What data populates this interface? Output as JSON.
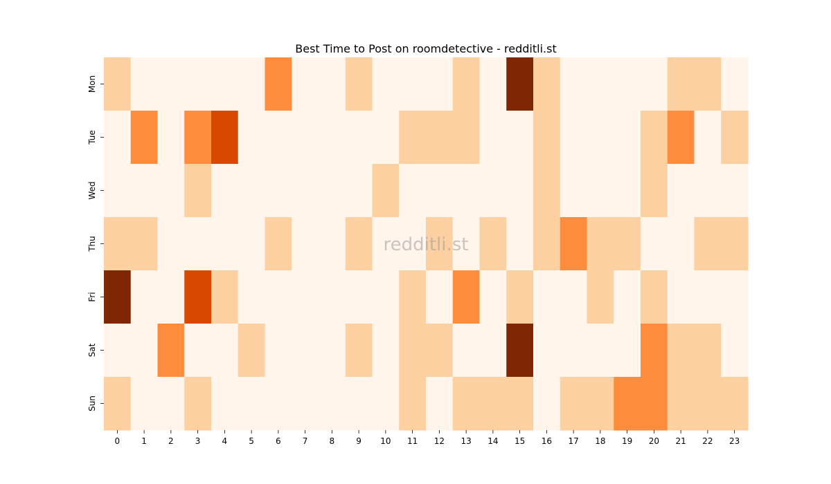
{
  "chart_data": {
    "type": "heatmap",
    "title": "Best Time to Post on roomdetective - redditli.st",
    "xlabel": "",
    "ylabel": "",
    "x_categories": [
      "0",
      "1",
      "2",
      "3",
      "4",
      "5",
      "6",
      "7",
      "8",
      "9",
      "10",
      "11",
      "12",
      "13",
      "14",
      "15",
      "16",
      "17",
      "18",
      "19",
      "20",
      "21",
      "22",
      "23"
    ],
    "y_categories": [
      "Mon",
      "Tue",
      "Wed",
      "Thu",
      "Fri",
      "Sat",
      "Sun"
    ],
    "values": [
      [
        1,
        0,
        0,
        0,
        0,
        0,
        3,
        0,
        0,
        1,
        0,
        0,
        0,
        1,
        0,
        5,
        1,
        0,
        0,
        0,
        0,
        1,
        1,
        0
      ],
      [
        0,
        3,
        0,
        3,
        4,
        0,
        0,
        0,
        0,
        0,
        0,
        1,
        1,
        1,
        0,
        0,
        1,
        0,
        0,
        0,
        1,
        3,
        0,
        1
      ],
      [
        0,
        0,
        0,
        1,
        0,
        0,
        0,
        0,
        0,
        0,
        1,
        0,
        0,
        0,
        0,
        0,
        1,
        0,
        0,
        0,
        1,
        0,
        0,
        0
      ],
      [
        1,
        1,
        0,
        0,
        0,
        0,
        1,
        0,
        0,
        1,
        0,
        0,
        1,
        0,
        1,
        0,
        1,
        3,
        1,
        1,
        0,
        0,
        1,
        1
      ],
      [
        5,
        0,
        0,
        4,
        1,
        0,
        0,
        0,
        0,
        0,
        0,
        1,
        0,
        3,
        0,
        1,
        0,
        0,
        1,
        0,
        1,
        0,
        0,
        0
      ],
      [
        0,
        0,
        3,
        0,
        0,
        1,
        0,
        0,
        0,
        1,
        0,
        1,
        1,
        0,
        0,
        5,
        0,
        0,
        0,
        0,
        3,
        1,
        1,
        0
      ],
      [
        1,
        0,
        0,
        1,
        0,
        0,
        0,
        0,
        0,
        0,
        0,
        1,
        0,
        1,
        1,
        1,
        0,
        1,
        1,
        3,
        3,
        1,
        1,
        1
      ]
    ],
    "value_range": [
      0,
      5
    ],
    "colormap": "Oranges",
    "color_scale": [
      "#fff5eb",
      "#fdd0a2",
      "#fd8d3c",
      "#fd8d3c",
      "#d94801",
      "#7f2704"
    ],
    "grid": false,
    "legend": "none",
    "watermark": "redditli.st"
  }
}
